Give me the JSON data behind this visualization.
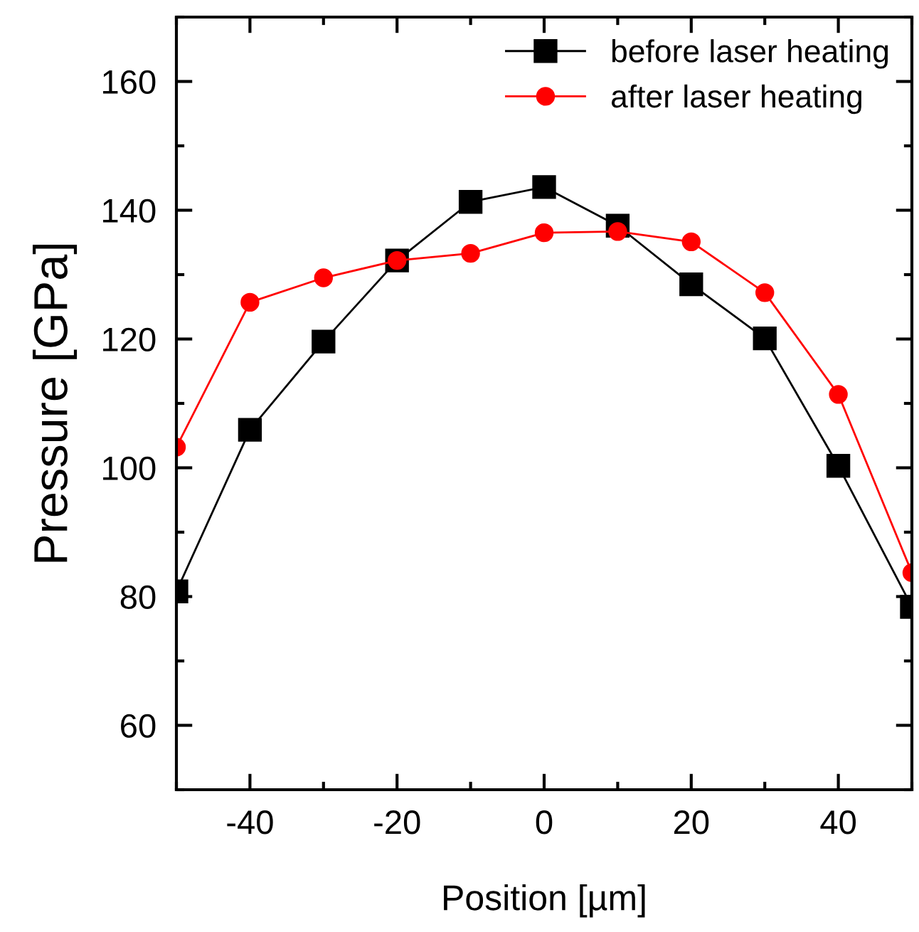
{
  "chart_data": {
    "type": "line",
    "xlabel": "Position [µm]",
    "ylabel": "Pressure [GPa]",
    "x": [
      -50,
      -40,
      -30,
      -20,
      -10,
      0,
      10,
      20,
      30,
      40,
      50
    ],
    "series": [
      {
        "name": "before laser heating",
        "color": "#000000",
        "marker": "square",
        "values": [
          80.8,
          105.9,
          119.6,
          132.2,
          141.3,
          143.6,
          137.6,
          128.5,
          120.1,
          100.3,
          78.4
        ]
      },
      {
        "name": "after laser heating",
        "color": "#ff0000",
        "marker": "circle",
        "values": [
          103.2,
          125.7,
          129.5,
          132.2,
          133.3,
          136.5,
          136.7,
          135.1,
          127.2,
          111.4,
          83.7
        ]
      }
    ],
    "xlim": [
      -50,
      50
    ],
    "xticks": [
      -40,
      -20,
      0,
      20,
      40
    ],
    "ylim": [
      50,
      170
    ],
    "yticks": [
      60,
      80,
      100,
      120,
      140,
      160
    ],
    "grid": false,
    "legend": "top right",
    "line_style": "solid"
  }
}
